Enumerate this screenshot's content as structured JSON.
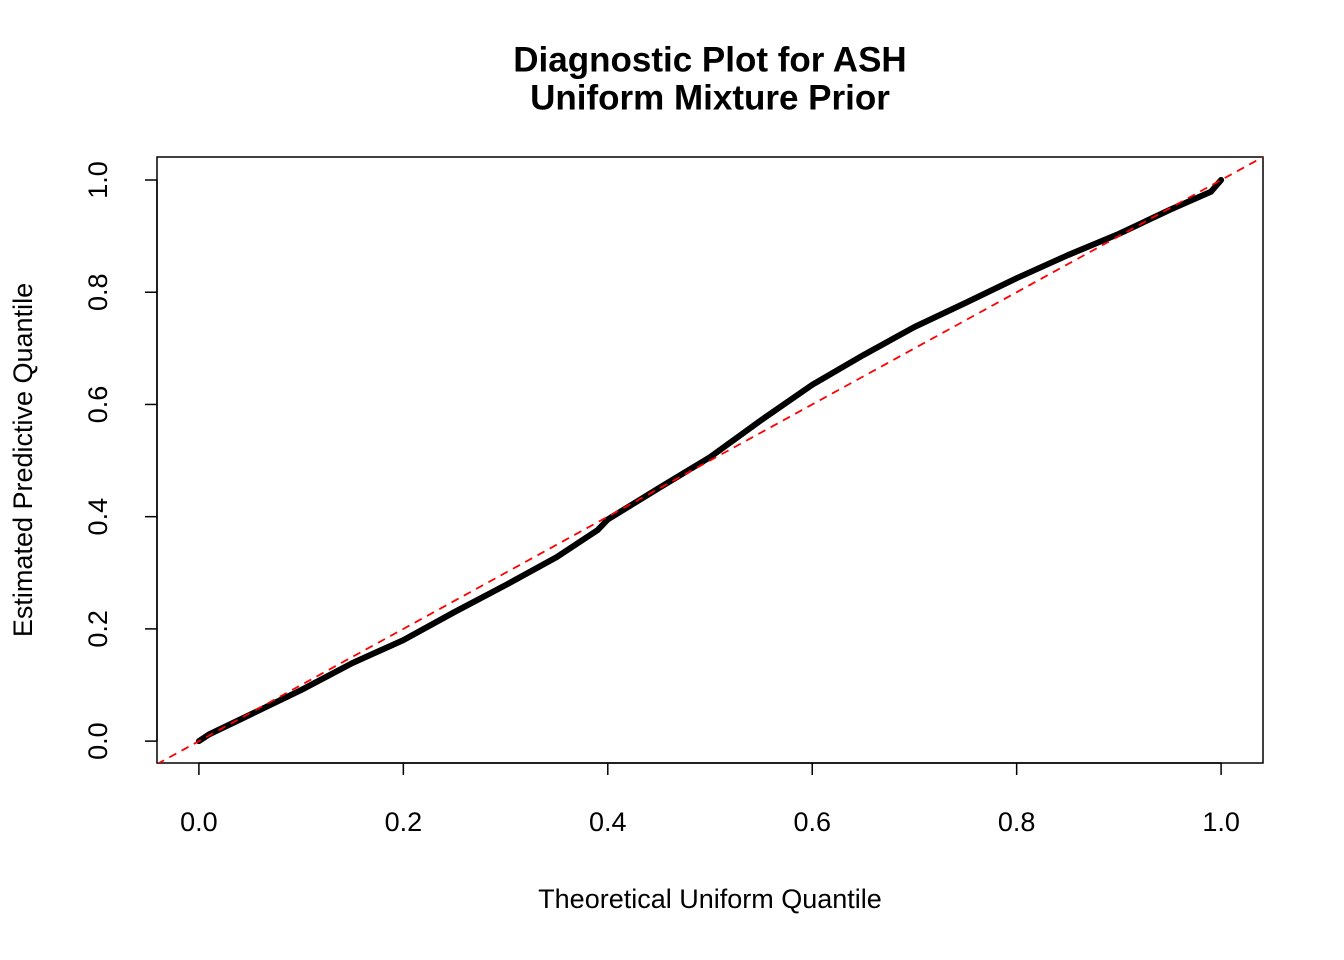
{
  "chart_data": {
    "type": "line",
    "title": "Diagnostic Plot for ASH",
    "subtitle": "Uniform Mixture Prior",
    "x_label": "Theoretical Uniform Quantile",
    "y_label": "Estimated Predictive Quantile",
    "x": [
      0.0,
      0.01,
      0.05,
      0.1,
      0.15,
      0.2,
      0.25,
      0.3,
      0.35,
      0.39,
      0.4,
      0.45,
      0.5,
      0.55,
      0.6,
      0.65,
      0.7,
      0.75,
      0.8,
      0.85,
      0.9,
      0.95,
      0.99,
      1.0
    ],
    "series": [
      {
        "color": "#000000",
        "values": [
          0.0,
          0.012,
          0.047,
          0.091,
          0.139,
          0.18,
          0.23,
          0.278,
          0.328,
          0.376,
          0.395,
          0.451,
          0.506,
          0.572,
          0.635,
          0.688,
          0.738,
          0.781,
          0.825,
          0.866,
          0.904,
          0.947,
          0.979,
          1.0
        ]
      }
    ],
    "reference_line": {
      "slope": 1,
      "intercept": 0,
      "color": "#ff0000",
      "dashed": true
    },
    "xlim": [
      -0.041,
      1.041
    ],
    "ylim": [
      -0.039,
      1.041
    ],
    "xticks": [
      {
        "value": 0,
        "label": "0.0"
      },
      0.2,
      0.4,
      0.6,
      0.8,
      {
        "value": 1,
        "label": "1.0"
      }
    ],
    "yticks": [
      {
        "value": 0,
        "label": "0.0"
      },
      0.2,
      0.4,
      0.6,
      0.8,
      {
        "value": 1,
        "label": "1.0"
      }
    ],
    "grid": false
  }
}
